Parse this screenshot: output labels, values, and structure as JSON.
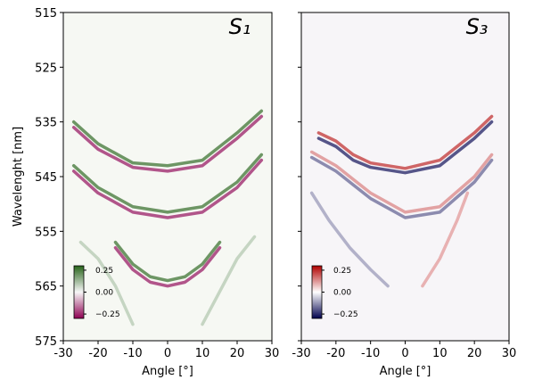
{
  "chart_data": [
    {
      "type": "heatmap",
      "title": "S₁",
      "xlabel": "Angle [°]",
      "ylabel": "Wavelenght [nm]",
      "xlim": [
        -30,
        30
      ],
      "xticks": [
        -30,
        -20,
        -10,
        0,
        10,
        20,
        30
      ],
      "ylim": [
        515,
        575
      ],
      "yticks": [
        515,
        525,
        535,
        545,
        555,
        565,
        575
      ],
      "invert_y": true,
      "background": "#f6f8f3",
      "colors": [
        "#8e0152",
        "#f7f7f7",
        "#276419"
      ],
      "clim": [
        -0.3,
        0.3
      ],
      "colorbar_ticks": [
        0.25,
        {
          "value": 0,
          "label": "0.00"
        },
        {
          "value": -0.25,
          "label": "−0.25"
        }
      ],
      "bands": [
        {
          "x": [
            -27,
            -20,
            -10,
            0,
            10,
            20,
            27
          ],
          "y": [
            535,
            539,
            542.5,
            543,
            542,
            537,
            533
          ],
          "value": 0.22
        },
        {
          "x": [
            -27,
            -20,
            -10,
            0,
            10,
            20,
            27
          ],
          "y": [
            536,
            540,
            543.3,
            544,
            543,
            538,
            534
          ],
          "value": -0.22
        },
        {
          "x": [
            -27,
            -20,
            -10,
            0,
            10,
            20,
            27
          ],
          "y": [
            543,
            547,
            550.5,
            551.5,
            550.5,
            546,
            541
          ],
          "value": 0.22
        },
        {
          "x": [
            -27,
            -20,
            -10,
            0,
            10,
            20,
            27
          ],
          "y": [
            544,
            548,
            551.5,
            552.5,
            551.5,
            547,
            542
          ],
          "value": -0.22
        },
        {
          "x": [
            -15,
            -10,
            -5,
            0,
            5,
            10,
            15
          ],
          "y": [
            557,
            561,
            563.3,
            564,
            563.3,
            561,
            557
          ],
          "value": 0.22
        },
        {
          "x": [
            -15,
            -10,
            -5,
            0,
            5,
            10,
            15
          ],
          "y": [
            558,
            562,
            564.3,
            565,
            564.3,
            562,
            558
          ],
          "value": -0.22
        },
        {
          "x": [
            -25,
            -20,
            -15,
            -10
          ],
          "y": [
            557,
            560,
            565,
            572
          ],
          "value": 0.08
        },
        {
          "x": [
            10,
            15,
            20,
            25
          ],
          "y": [
            572,
            566,
            560,
            556
          ],
          "value": 0.08
        }
      ]
    },
    {
      "type": "heatmap",
      "title": "S₃",
      "xlabel": "Angle [°]",
      "xlim": [
        -30,
        30
      ],
      "xticks": [
        -30,
        -20,
        -10,
        0,
        10,
        20,
        30
      ],
      "ylim": [
        515,
        575
      ],
      "yticks": [
        515,
        525,
        535,
        545,
        555,
        565,
        575
      ],
      "invert_y": true,
      "background": "#f7f5f8",
      "colors": [
        "#00004c",
        "#ffffff",
        "#b00000"
      ],
      "clim": [
        -0.3,
        0.3
      ],
      "colorbar_ticks": [
        0.25,
        {
          "value": 0,
          "label": "0.00"
        },
        {
          "value": -0.25,
          "label": "−0.25"
        }
      ],
      "bands": [
        {
          "x": [
            -25,
            -20,
            -15,
            -10,
            0,
            10,
            20,
            25
          ],
          "y": [
            537,
            538.5,
            541,
            542.5,
            543.5,
            542,
            537,
            534
          ],
          "value": 0.2
        },
        {
          "x": [
            -25,
            -20,
            -15,
            -10,
            0,
            10,
            20,
            25
          ],
          "y": [
            538,
            539.5,
            542,
            543.3,
            544.3,
            543,
            538,
            535
          ],
          "value": -0.22
        },
        {
          "x": [
            -27,
            -20,
            -15,
            -10,
            0,
            10,
            20,
            25
          ],
          "y": [
            540.5,
            543,
            545.5,
            548,
            551.5,
            550.5,
            545,
            541
          ],
          "value": 0.12
        },
        {
          "x": [
            -27,
            -20,
            -15,
            -10,
            0,
            10,
            20,
            25
          ],
          "y": [
            541.5,
            544,
            546.5,
            549,
            552.5,
            551.5,
            546,
            542
          ],
          "value": -0.15
        },
        {
          "x": [
            -27,
            -22,
            -16,
            -10,
            -5
          ],
          "y": [
            548,
            553,
            558,
            562,
            565
          ],
          "value": -0.1
        },
        {
          "x": [
            5,
            10,
            15,
            18
          ],
          "y": [
            565,
            560,
            553,
            548
          ],
          "value": 0.1
        }
      ]
    }
  ]
}
